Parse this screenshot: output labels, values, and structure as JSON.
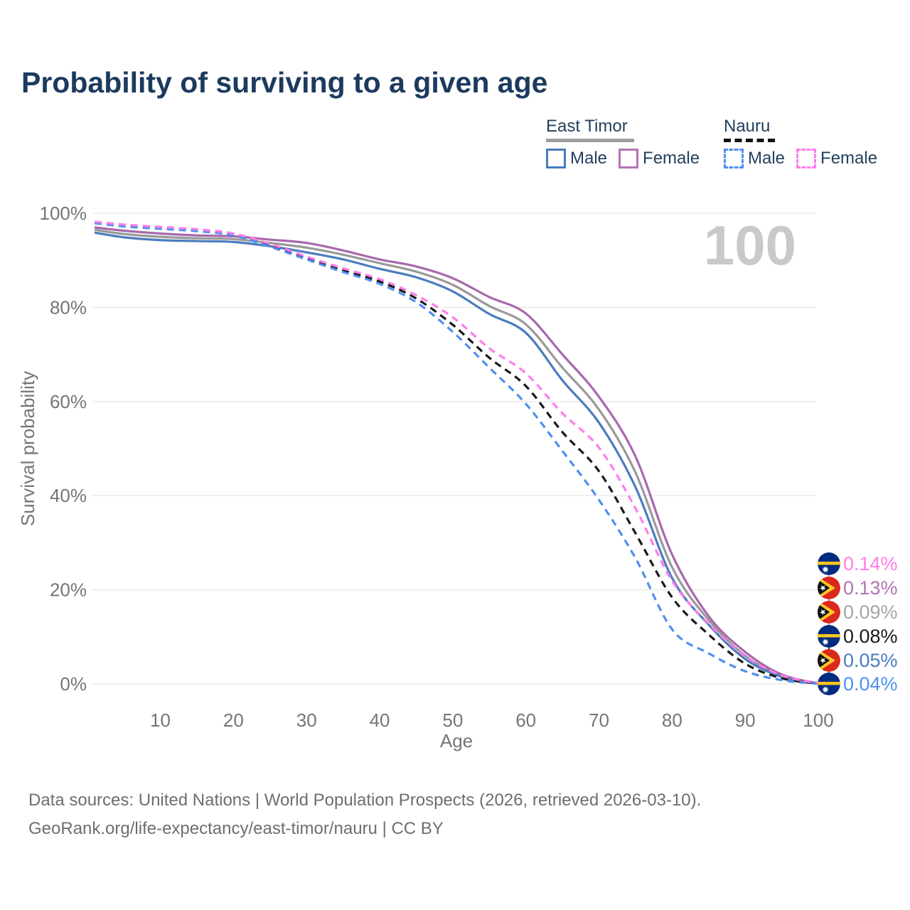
{
  "title": "Probability of surviving to a given age",
  "watermark_age": "100",
  "legend": {
    "groups": [
      {
        "name": "East Timor",
        "line_style": "solid",
        "underline_color": "#9e9e9e",
        "items": [
          {
            "label": "Male",
            "color": "#4a7cbf"
          },
          {
            "label": "Female",
            "color": "#b473b4"
          }
        ]
      },
      {
        "name": "Nauru",
        "line_style": "dashed",
        "underline_color": "#111111",
        "items": [
          {
            "label": "Male",
            "color": "#4f8ff0"
          },
          {
            "label": "Female",
            "color": "#ff7de9"
          }
        ]
      }
    ]
  },
  "chart_data": {
    "type": "line",
    "title": "Probability of surviving to a given age",
    "xlabel": "Age",
    "ylabel": "Survival probability",
    "xlim": [
      1,
      100
    ],
    "ylim": [
      0,
      100
    ],
    "grid": "horizontal-only",
    "x_ticks": [
      10,
      20,
      30,
      40,
      50,
      60,
      70,
      80,
      90,
      100
    ],
    "y_ticks": [
      0,
      20,
      40,
      60,
      80,
      100
    ],
    "y_tick_suffix": "%",
    "x": [
      1,
      5,
      10,
      15,
      20,
      25,
      30,
      35,
      40,
      45,
      50,
      55,
      60,
      65,
      70,
      75,
      80,
      85,
      90,
      95,
      100
    ],
    "series": [
      {
        "id": "east-timor-both",
        "name": "East Timor — Both sexes",
        "color": "#999999",
        "dashed": false,
        "values": [
          96.5,
          95.6,
          95.0,
          94.7,
          94.5,
          93.7,
          92.7,
          91.2,
          89.4,
          87.6,
          84.8,
          80.3,
          76.4,
          67.2,
          58.3,
          44.9,
          24.8,
          13.6,
          6.0,
          1.7,
          0.09
        ]
      },
      {
        "id": "east-timor-male",
        "name": "East Timor — Male",
        "color": "#4a7cbf",
        "dashed": false,
        "values": [
          95.9,
          94.9,
          94.3,
          94.1,
          93.9,
          93.0,
          91.7,
          90.2,
          88.2,
          86.4,
          83.4,
          78.6,
          74.6,
          64.5,
          55.5,
          41.8,
          22.5,
          12.6,
          5.3,
          1.5,
          0.05
        ]
      },
      {
        "id": "east-timor-female",
        "name": "East Timor — Female",
        "color": "#a868ad",
        "dashed": false,
        "values": [
          97.0,
          96.3,
          95.7,
          95.3,
          95.1,
          94.4,
          93.7,
          92.1,
          90.2,
          88.7,
          86.2,
          82.2,
          78.7,
          70.0,
          61.0,
          48.3,
          27.5,
          14.4,
          6.8,
          2.0,
          0.13
        ]
      },
      {
        "id": "nauru-both",
        "name": "Nauru — Both sexes",
        "color": "#1a1a1a",
        "dashed": true,
        "values": [
          98.0,
          97.4,
          96.9,
          96.4,
          95.5,
          93.2,
          90.5,
          87.9,
          85.5,
          81.9,
          76.3,
          69.3,
          63.3,
          53.5,
          45.2,
          32.0,
          18.4,
          10.5,
          4.3,
          1.2,
          0.08
        ]
      },
      {
        "id": "nauru-male",
        "name": "Nauru — Male",
        "color": "#4f8ff0",
        "dashed": true,
        "values": [
          97.9,
          97.2,
          96.7,
          96.2,
          95.3,
          92.9,
          90.2,
          87.5,
          85.0,
          81.1,
          74.8,
          67.2,
          59.5,
          49.5,
          39.1,
          26.7,
          11.6,
          6.5,
          2.7,
          0.8,
          0.04
        ]
      },
      {
        "id": "nauru-female",
        "name": "Nauru — Female",
        "color": "#ff7de9",
        "dashed": true,
        "values": [
          98.2,
          97.6,
          97.1,
          96.6,
          95.7,
          93.5,
          90.8,
          88.3,
          86.0,
          82.6,
          77.9,
          71.3,
          66.0,
          57.5,
          50.2,
          37.3,
          21.9,
          12.8,
          5.9,
          1.8,
          0.14
        ]
      }
    ],
    "end_labels": [
      {
        "value": "0.14%",
        "flag": "nauru",
        "series_id": "nauru-female",
        "color": "#ff7de9"
      },
      {
        "value": "0.13%",
        "flag": "east-timor",
        "series_id": "east-timor-female",
        "color": "#b173b3"
      },
      {
        "value": "0.09%",
        "flag": "east-timor",
        "series_id": "east-timor-both",
        "color": "#a5a5a5"
      },
      {
        "value": "0.08%",
        "flag": "nauru",
        "series_id": "nauru-both",
        "color": "#1a1a1a"
      },
      {
        "value": "0.05%",
        "flag": "east-timor",
        "series_id": "east-timor-male",
        "color": "#4a7cbf"
      },
      {
        "value": "0.04%",
        "flag": "nauru",
        "series_id": "nauru-male",
        "color": "#4f8ff0"
      }
    ],
    "flag_colors": {
      "nauru": {
        "field": "#002b7f",
        "stripe": "#ffc61e",
        "star": "#ffffff"
      },
      "east_timor": {
        "field": "#da291c",
        "chevron": "#ffc726",
        "triangle": "#111111",
        "star": "#ffffff"
      }
    },
    "axis_text_color": "#757575",
    "grid_color": "#e7e7e7",
    "watermark_color": "#c9c9c9"
  },
  "source": {
    "line1": "Data sources: United Nations | World Population Prospects (2026, retrieved 2026-03-10).",
    "line2": "GeoRank.org/life-expectancy/east-timor/nauru | CC BY"
  }
}
